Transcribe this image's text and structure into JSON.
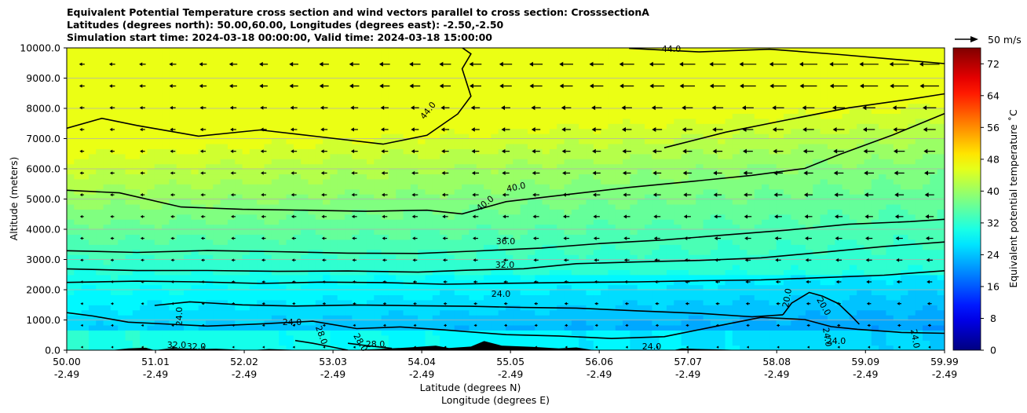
{
  "chart_data": {
    "type": "heatmap",
    "title_lines": [
      "Equivalent Potential Temperature cross section and wind vectors parallel to cross section: CrosssectionA",
      "Latitudes (degrees north): 50.00,60.00, Longitudes (degrees east): -2.50,-2.50",
      "Simulation start time: 2024-03-18 00:00:00, Valid time: 2024-03-18 15:00:00"
    ],
    "xlabel_primary": "Latitude (degrees N)",
    "xlabel_secondary": "Longitude (degrees E)",
    "ylabel": "Altitude (meters)",
    "x_ticks_lat": [
      "50.00",
      "51.01",
      "52.02",
      "53.03",
      "54.04",
      "55.05",
      "56.06",
      "57.07",
      "58.08",
      "59.09",
      "59.99"
    ],
    "x_ticks_lon": [
      "-2.49",
      "-2.49",
      "-2.49",
      "-2.49",
      "-2.49",
      "-2.49",
      "-2.49",
      "-2.49",
      "-2.49",
      "-2.49",
      "-2.49"
    ],
    "x_tick_values": [
      50.0,
      51.01,
      52.02,
      53.03,
      54.04,
      55.05,
      56.06,
      57.07,
      58.08,
      59.09,
      59.99
    ],
    "xlim": [
      50.0,
      59.99
    ],
    "y_ticks": [
      "0.0",
      "1000.0",
      "2000.0",
      "3000.0",
      "4000.0",
      "5000.0",
      "6000.0",
      "7000.0",
      "8000.0",
      "9000.0",
      "10000.0"
    ],
    "y_tick_values": [
      0,
      1000,
      2000,
      3000,
      4000,
      5000,
      6000,
      7000,
      8000,
      9000,
      10000
    ],
    "ylim": [
      0,
      10000
    ],
    "grid": "horizontal",
    "colorbar": {
      "label": "Equivalent potential temperature ˚C",
      "ticks": [
        "0",
        "8",
        "16",
        "24",
        "32",
        "40",
        "48",
        "56",
        "64",
        "72"
      ],
      "tick_values": [
        0,
        8,
        16,
        24,
        32,
        40,
        48,
        56,
        64,
        72
      ],
      "range": [
        0,
        76
      ],
      "colormap": "jet"
    },
    "quiver_key": {
      "label": "50 m/s"
    },
    "contour_labels": [
      "44.0",
      "44.0",
      "40.0",
      "40.0",
      "36.0",
      "32.0",
      "24.0",
      "24.0",
      "24.0",
      "28.0",
      "28.0",
      "28.0",
      "20.0",
      "20.0",
      "24.0",
      "24.0",
      "24.0",
      "32.0",
      "32.0",
      "24.0"
    ],
    "contours": [
      {
        "level": 20,
        "points": [
          [
            58.15,
            1180
          ],
          [
            58.25,
            1560
          ],
          [
            58.45,
            1930
          ],
          [
            58.6,
            1800
          ],
          [
            58.78,
            1560
          ],
          [
            58.92,
            1150
          ],
          [
            59.02,
            850
          ]
        ]
      },
      {
        "level": 24,
        "points": [
          [
            51.0,
            1500
          ],
          [
            51.4,
            1580
          ],
          [
            52.0,
            1520
          ],
          [
            52.6,
            1440
          ],
          [
            53.3,
            1480
          ],
          [
            54.0,
            1470
          ],
          [
            54.6,
            1450
          ],
          [
            55.2,
            1420
          ],
          [
            55.8,
            1380
          ],
          [
            56.5,
            1280
          ],
          [
            57.2,
            1200
          ],
          [
            57.8,
            1120
          ],
          [
            58.15,
            1180
          ]
        ]
      },
      {
        "level": 24,
        "points": [
          [
            50.0,
            1250
          ],
          [
            50.3,
            1150
          ],
          [
            50.7,
            920
          ],
          [
            51.1,
            860
          ],
          [
            51.6,
            780
          ],
          [
            52.2,
            880
          ],
          [
            52.8,
            950
          ],
          [
            53.3,
            700
          ],
          [
            53.8,
            750
          ],
          [
            54.3,
            650
          ],
          [
            55.0,
            500
          ],
          [
            55.6,
            480
          ],
          [
            56.2,
            380
          ],
          [
            56.8,
            450
          ],
          [
            57.4,
            800
          ],
          [
            57.9,
            1080
          ],
          [
            58.4,
            1000
          ],
          [
            58.7,
            760
          ],
          [
            59.0,
            700
          ],
          [
            59.5,
            600
          ],
          [
            59.99,
            580
          ]
        ]
      },
      {
        "level": 28,
        "points": [
          [
            52.6,
            300
          ],
          [
            52.8,
            220
          ],
          [
            53.0,
            130
          ],
          [
            53.2,
            20
          ]
        ]
      },
      {
        "level": 28,
        "points": [
          [
            53.2,
            250
          ],
          [
            53.4,
            160
          ],
          [
            53.7,
            80
          ]
        ]
      },
      {
        "level": 32,
        "points": [
          [
            50.0,
            2250
          ],
          [
            50.8,
            2300
          ],
          [
            51.5,
            2280
          ],
          [
            52.2,
            2220
          ],
          [
            52.9,
            2250
          ],
          [
            53.6,
            2220
          ],
          [
            54.3,
            2160
          ],
          [
            55.0,
            2200
          ],
          [
            55.8,
            2230
          ],
          [
            56.5,
            2240
          ],
          [
            57.2,
            2280
          ],
          [
            57.9,
            2320
          ],
          [
            58.6,
            2410
          ],
          [
            59.3,
            2500
          ],
          [
            59.99,
            2650
          ]
        ]
      },
      {
        "level": 32,
        "points": [
          [
            50.0,
            2700
          ],
          [
            50.8,
            2650
          ],
          [
            51.6,
            2620
          ],
          [
            52.4,
            2600
          ],
          [
            53.2,
            2640
          ],
          [
            54.0,
            2580
          ],
          [
            54.6,
            2650
          ],
          [
            55.2,
            2700
          ],
          [
            55.8,
            2850
          ],
          [
            56.5,
            2900
          ],
          [
            57.2,
            2950
          ],
          [
            57.9,
            3050
          ],
          [
            58.6,
            3250
          ],
          [
            59.3,
            3450
          ],
          [
            59.99,
            3600
          ]
        ]
      },
      {
        "level": 36,
        "points": [
          [
            50.0,
            3300
          ],
          [
            50.8,
            3250
          ],
          [
            51.6,
            3280
          ],
          [
            52.4,
            3250
          ],
          [
            53.2,
            3230
          ],
          [
            54.0,
            3200
          ],
          [
            54.7,
            3300
          ],
          [
            55.4,
            3400
          ],
          [
            56.1,
            3550
          ],
          [
            56.8,
            3650
          ],
          [
            57.5,
            3800
          ],
          [
            58.2,
            3950
          ],
          [
            58.9,
            4150
          ],
          [
            59.6,
            4250
          ],
          [
            59.99,
            4350
          ]
        ]
      },
      {
        "level": 40,
        "points": [
          [
            50.0,
            5300
          ],
          [
            50.6,
            5200
          ],
          [
            51.3,
            4750
          ],
          [
            52.0,
            4680
          ],
          [
            52.7,
            4650
          ],
          [
            53.4,
            4600
          ],
          [
            54.1,
            4620
          ],
          [
            54.5,
            4500
          ],
          [
            55.0,
            4900
          ],
          [
            55.7,
            5150
          ],
          [
            56.4,
            5400
          ],
          [
            57.1,
            5600
          ],
          [
            57.8,
            5800
          ],
          [
            58.4,
            6000
          ],
          [
            58.8,
            6500
          ],
          [
            59.4,
            7100
          ],
          [
            59.99,
            7850
          ]
        ]
      },
      {
        "level": 44,
        "points": [
          [
            50.0,
            7350
          ],
          [
            50.4,
            7650
          ],
          [
            50.8,
            7450
          ],
          [
            51.5,
            7100
          ],
          [
            52.2,
            7300
          ],
          [
            52.9,
            7050
          ],
          [
            53.6,
            6800
          ],
          [
            54.1,
            7100
          ],
          [
            54.45,
            7800
          ],
          [
            54.6,
            8400
          ],
          [
            54.5,
            9300
          ],
          [
            54.6,
            9800
          ],
          [
            54.5,
            10000
          ]
        ]
      },
      {
        "level": 44,
        "points": [
          [
            56.4,
            10000
          ],
          [
            57.2,
            9850
          ],
          [
            58.0,
            9950
          ],
          [
            58.8,
            9800
          ],
          [
            59.99,
            9500
          ]
        ]
      },
      {
        "level": 44,
        "points": [
          [
            56.8,
            6700
          ],
          [
            57.5,
            7200
          ],
          [
            58.2,
            7600
          ],
          [
            58.9,
            8000
          ],
          [
            59.6,
            8300
          ],
          [
            59.99,
            8500
          ]
        ]
      }
    ]
  }
}
